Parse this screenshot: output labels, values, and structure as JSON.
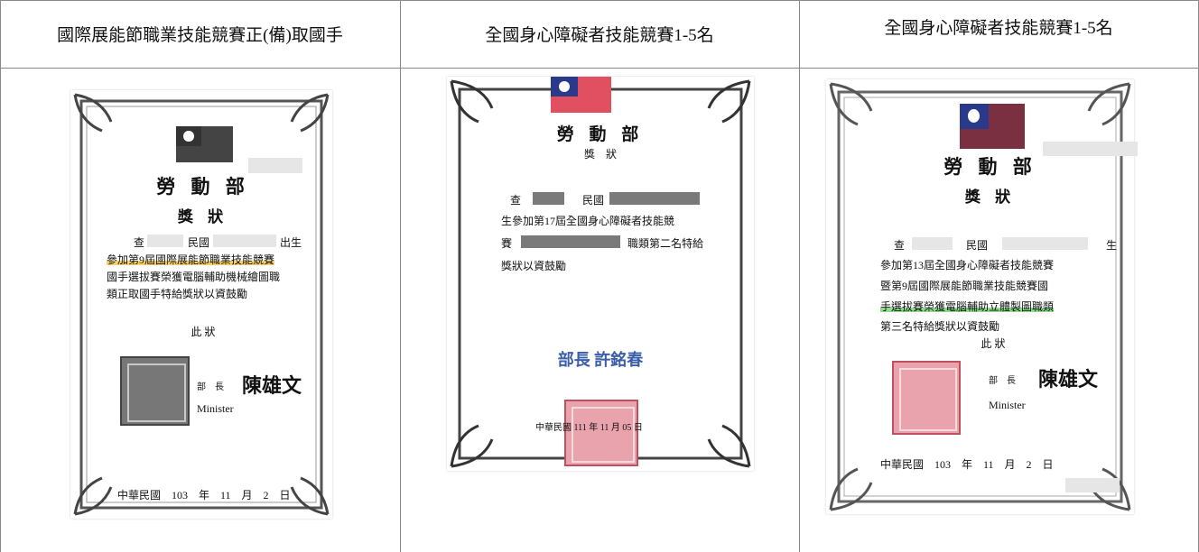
{
  "header": {
    "cells": [
      "國際展能節職業技能競賽正(備)取國手",
      "全國身心障礙者技能競賽1-5名",
      "全國身心障礙者技能競賽1-5名"
    ]
  },
  "certificates": [
    {
      "ministry": "勞 動 部",
      "award": "獎 狀",
      "line1": [
        "查",
        "民國",
        "出生"
      ],
      "lines": [
        "參加第9屆國際展能節職業技能競賽",
        "國手選拔賽榮獲電腦輔助機械繪圖職",
        "類正取國手特給獎狀以資鼓勵"
      ],
      "closing": "此 狀",
      "title": "部　長",
      "minister": "陳雄文",
      "minister_en": "Minister",
      "date": "中華民國　103　年　11　月　2　日"
    },
    {
      "ministry": "勞 動 部",
      "award": "獎　狀",
      "line1": [
        "查",
        "民國"
      ],
      "lines": [
        "生參加第17屆全國身心障礙者技能競",
        "職類第二名特給",
        "獎狀以資鼓勵"
      ],
      "line3_prefix": "賽",
      "minister": "部長 許銘春",
      "date": "中華民國 111 年 11 月 05 日"
    },
    {
      "ministry": "勞 動 部",
      "award": "獎 狀",
      "line1": [
        "查",
        "民國",
        "生"
      ],
      "lines": [
        "參加第13屆全國身心障礙者技能競賽",
        "暨第9屆國際展能節職業技能競賽國",
        "手選拔賽榮獲電腦輔助立體製圖職類",
        "第三名特給獎狀以資鼓勵"
      ],
      "closing": "此 狀",
      "title": "部　長",
      "minister": "陳雄文",
      "minister_en": "Minister",
      "date": "中華民國　103　年　11　月　2　日"
    }
  ]
}
